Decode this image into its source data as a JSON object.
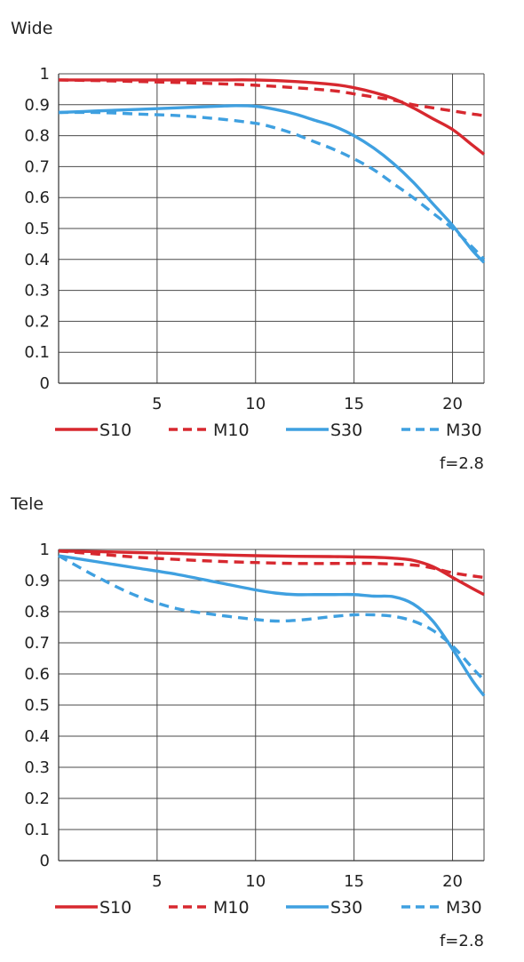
{
  "chart_data": [
    {
      "type": "line",
      "title": "Wide",
      "xlabel": "",
      "ylabel": "",
      "xlim": [
        0,
        21.6
      ],
      "ylim": [
        0,
        1
      ],
      "x_ticks": [
        5,
        10,
        15,
        20
      ],
      "y_ticks": [
        0,
        0.1,
        0.2,
        0.3,
        0.4,
        0.5,
        0.6,
        0.7,
        0.8,
        0.9,
        1
      ],
      "y_tick_labels": [
        "0",
        "0.1",
        "0.2",
        "0.3",
        "0.4",
        "0.5",
        "0.6",
        "0.7",
        "0.8",
        "0.9",
        "1"
      ],
      "grid": true,
      "legend_position": "bottom",
      "aperture_label": "f=2.8",
      "series": [
        {
          "name": "S10",
          "color": "#d7282f",
          "dash": "solid",
          "x": [
            0,
            2,
            4,
            6,
            8,
            10,
            12,
            14,
            15,
            16,
            17,
            18,
            19,
            20,
            21,
            21.6
          ],
          "y": [
            0.98,
            0.98,
            0.98,
            0.98,
            0.98,
            0.98,
            0.975,
            0.965,
            0.955,
            0.94,
            0.92,
            0.89,
            0.855,
            0.82,
            0.77,
            0.74
          ]
        },
        {
          "name": "M10",
          "color": "#d7282f",
          "dash": "dashed",
          "x": [
            0,
            2,
            4,
            6,
            8,
            10,
            12,
            14,
            15,
            16,
            17,
            18,
            19,
            20,
            21,
            21.6
          ],
          "y": [
            0.98,
            0.978,
            0.975,
            0.972,
            0.968,
            0.963,
            0.955,
            0.945,
            0.935,
            0.925,
            0.915,
            0.9,
            0.89,
            0.88,
            0.87,
            0.865
          ]
        },
        {
          "name": "S30",
          "color": "#3fa0e0",
          "dash": "solid",
          "x": [
            0,
            2,
            4,
            6,
            8,
            9,
            10,
            11,
            12,
            13,
            14,
            15,
            16,
            17,
            18,
            19,
            20,
            21,
            21.6
          ],
          "y": [
            0.875,
            0.88,
            0.885,
            0.89,
            0.895,
            0.897,
            0.895,
            0.885,
            0.87,
            0.85,
            0.83,
            0.8,
            0.76,
            0.71,
            0.65,
            0.58,
            0.51,
            0.43,
            0.39
          ]
        },
        {
          "name": "M30",
          "color": "#3fa0e0",
          "dash": "dashed",
          "x": [
            0,
            2,
            4,
            6,
            8,
            10,
            11,
            12,
            13,
            14,
            15,
            16,
            17,
            18,
            19,
            20,
            21,
            21.6
          ],
          "y": [
            0.875,
            0.875,
            0.87,
            0.865,
            0.855,
            0.84,
            0.825,
            0.805,
            0.78,
            0.755,
            0.725,
            0.69,
            0.645,
            0.6,
            0.55,
            0.5,
            0.44,
            0.4
          ]
        }
      ]
    },
    {
      "type": "line",
      "title": "Tele",
      "xlabel": "",
      "ylabel": "",
      "xlim": [
        0,
        21.6
      ],
      "ylim": [
        0,
        1
      ],
      "x_ticks": [
        5,
        10,
        15,
        20
      ],
      "y_ticks": [
        0,
        0.1,
        0.2,
        0.3,
        0.4,
        0.5,
        0.6,
        0.7,
        0.8,
        0.9,
        1
      ],
      "y_tick_labels": [
        "0",
        "0.1",
        "0.2",
        "0.3",
        "0.4",
        "0.5",
        "0.6",
        "0.7",
        "0.8",
        "0.9",
        "1"
      ],
      "grid": true,
      "legend_position": "bottom",
      "aperture_label": "f=2.8",
      "series": [
        {
          "name": "S10",
          "color": "#d7282f",
          "dash": "solid",
          "x": [
            0,
            2,
            4,
            6,
            8,
            10,
            12,
            14,
            16,
            17,
            18,
            19,
            20,
            21,
            21.6
          ],
          "y": [
            0.995,
            0.993,
            0.99,
            0.987,
            0.983,
            0.98,
            0.978,
            0.977,
            0.975,
            0.972,
            0.965,
            0.945,
            0.91,
            0.875,
            0.855
          ]
        },
        {
          "name": "M10",
          "color": "#d7282f",
          "dash": "dashed",
          "x": [
            0,
            2,
            4,
            6,
            8,
            10,
            12,
            14,
            16,
            18,
            19,
            20,
            21,
            21.6
          ],
          "y": [
            0.995,
            0.985,
            0.975,
            0.968,
            0.962,
            0.958,
            0.955,
            0.955,
            0.955,
            0.95,
            0.94,
            0.925,
            0.915,
            0.91
          ]
        },
        {
          "name": "S30",
          "color": "#3fa0e0",
          "dash": "solid",
          "x": [
            0,
            2,
            4,
            6,
            8,
            10,
            11,
            12,
            13,
            14,
            15,
            16,
            17,
            18,
            19,
            20,
            21,
            21.6
          ],
          "y": [
            0.98,
            0.96,
            0.94,
            0.92,
            0.895,
            0.87,
            0.86,
            0.855,
            0.855,
            0.855,
            0.855,
            0.85,
            0.848,
            0.825,
            0.77,
            0.68,
            0.58,
            0.53
          ]
        },
        {
          "name": "M30",
          "color": "#3fa0e0",
          "dash": "dashed",
          "x": [
            0,
            2,
            4,
            6,
            8,
            10,
            11,
            12,
            13,
            14,
            15,
            16,
            17,
            18,
            19,
            20,
            21,
            21.6
          ],
          "y": [
            0.98,
            0.91,
            0.85,
            0.81,
            0.79,
            0.775,
            0.77,
            0.772,
            0.778,
            0.785,
            0.79,
            0.79,
            0.785,
            0.77,
            0.74,
            0.69,
            0.62,
            0.58
          ]
        }
      ]
    }
  ]
}
